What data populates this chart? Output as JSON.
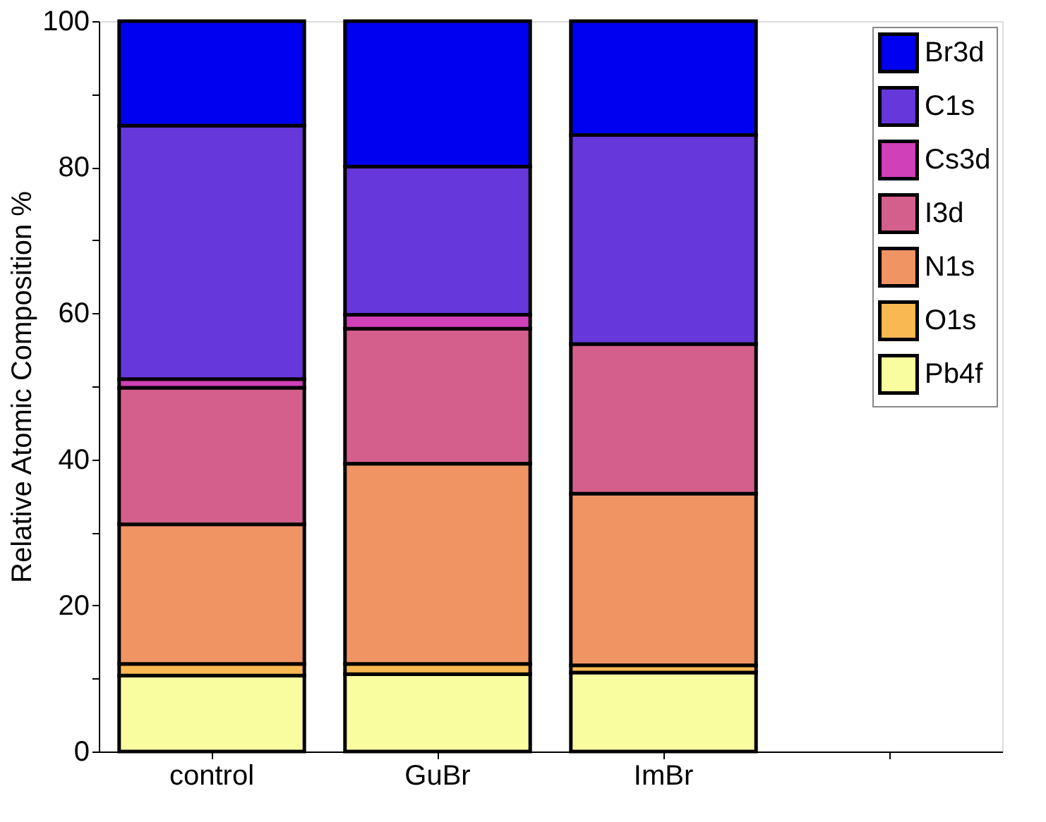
{
  "chart_data": {
    "type": "bar",
    "stacked": true,
    "ylabel": "Relative Atomic Composition %",
    "categories": [
      "control",
      "GuBr",
      "ImBr",
      null
    ],
    "series": [
      {
        "name": "Pb4f",
        "color": "#fafca0",
        "values": [
          10.4,
          10.6,
          10.8,
          null
        ]
      },
      {
        "name": "O1s",
        "color": "#fab852",
        "values": [
          1.6,
          1.4,
          1.0,
          null
        ]
      },
      {
        "name": "N1s",
        "color": "#f09464",
        "values": [
          19.1,
          27.4,
          23.5,
          null
        ]
      },
      {
        "name": "I3d",
        "color": "#d45f8d",
        "values": [
          18.7,
          18.5,
          20.5,
          null
        ]
      },
      {
        "name": "Cs3d",
        "color": "#d040b8",
        "values": [
          1.2,
          1.9,
          null,
          null
        ]
      },
      {
        "name": "C1s",
        "color": "#6637db",
        "values": [
          34.7,
          20.3,
          28.6,
          null
        ]
      },
      {
        "name": "Br3d",
        "color": "#0000f0",
        "values": [
          14.3,
          19.9,
          15.6,
          null
        ]
      }
    ],
    "ylim": [
      0,
      100
    ],
    "yticks": [
      0,
      {
        "value": 10,
        "label": null
      },
      20,
      {
        "value": 30,
        "label": null
      },
      40,
      {
        "value": 50,
        "label": null
      },
      60,
      {
        "value": 70,
        "label": null
      },
      80,
      {
        "value": 90,
        "label": null
      },
      100
    ],
    "grid": false,
    "legend": "top right"
  }
}
